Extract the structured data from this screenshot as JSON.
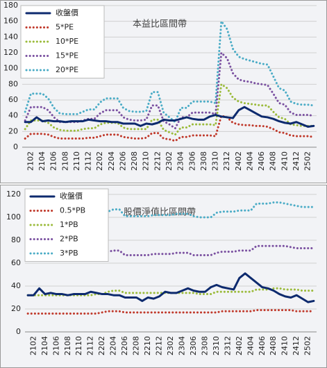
{
  "chart_data": [
    {
      "type": "line",
      "title": "本益比區間帶",
      "categories": [
        null,
        "2102",
        null,
        "2104",
        null,
        "2106",
        null,
        "2108",
        null,
        "2110",
        null,
        "2112",
        null,
        "2202",
        null,
        "2204",
        null,
        "2206",
        null,
        "2208",
        null,
        "2210",
        null,
        "2212",
        null,
        "2302",
        null,
        "2304",
        null,
        "2306",
        null,
        "2308",
        null,
        "2310",
        null,
        "2312",
        null,
        "2402",
        null,
        "2404",
        null,
        "2406",
        null,
        "2408",
        null,
        "2410",
        null,
        "2412",
        null,
        "2502",
        null
      ],
      "ylim": [
        0,
        180
      ],
      "yticks": [
        0,
        20,
        40,
        60,
        80,
        100,
        120,
        140,
        160,
        180
      ],
      "grid": true,
      "legend": "top-left",
      "series": [
        {
          "name": "收盤價",
          "color": "#0d2a6e",
          "style": "solid",
          "values": [
            32,
            32,
            38,
            33,
            34,
            33,
            33,
            32,
            33,
            33,
            33,
            35,
            34,
            33,
            33,
            32,
            32,
            30,
            30,
            30,
            27,
            30,
            29,
            31,
            35,
            34,
            34,
            36,
            38,
            36,
            35,
            35,
            39,
            41,
            39,
            38,
            37,
            47,
            51,
            47,
            43,
            39,
            38,
            36,
            33,
            31,
            30,
            32,
            29,
            26,
            27
          ]
        },
        {
          "name": "5*PE",
          "color": "#c0392b",
          "style": "dotted",
          "values": [
            11,
            17,
            17,
            17,
            16,
            13,
            11,
            11,
            11,
            11,
            11,
            12,
            12,
            14,
            16,
            16,
            16,
            13,
            12,
            11,
            11,
            12,
            18,
            18,
            11,
            10,
            8,
            13,
            13,
            15,
            15,
            15,
            15,
            14,
            40,
            38,
            31,
            29,
            28,
            28,
            27,
            27,
            26,
            23,
            19,
            18,
            15,
            14,
            14,
            14,
            13
          ]
        },
        {
          "name": "10*PE",
          "color": "#9bbb3b",
          "style": "dotted",
          "values": [
            23,
            34,
            34,
            34,
            31,
            25,
            22,
            21,
            21,
            21,
            23,
            24,
            24,
            29,
            31,
            31,
            31,
            25,
            23,
            23,
            23,
            23,
            35,
            35,
            22,
            19,
            16,
            25,
            25,
            29,
            29,
            29,
            29,
            28,
            80,
            75,
            63,
            58,
            56,
            55,
            54,
            53,
            53,
            45,
            38,
            36,
            29,
            28,
            27,
            27,
            27
          ]
        },
        {
          "name": "15*PE",
          "color": "#7a50a0",
          "style": "dotted",
          "values": [
            34,
            51,
            51,
            51,
            47,
            38,
            32,
            32,
            32,
            32,
            34,
            36,
            36,
            43,
            47,
            47,
            47,
            38,
            35,
            34,
            34,
            35,
            53,
            53,
            33,
            29,
            24,
            38,
            38,
            44,
            44,
            44,
            44,
            42,
            120,
            113,
            94,
            86,
            84,
            83,
            81,
            80,
            79,
            68,
            56,
            54,
            44,
            41,
            41,
            41,
            40
          ]
        },
        {
          "name": "20*PE",
          "color": "#4bacc6",
          "style": "dotted",
          "values": [
            45,
            68,
            68,
            68,
            62,
            50,
            43,
            42,
            42,
            42,
            45,
            48,
            48,
            57,
            62,
            62,
            62,
            50,
            46,
            45,
            45,
            46,
            70,
            70,
            44,
            38,
            32,
            50,
            50,
            58,
            58,
            58,
            58,
            56,
            160,
            150,
            125,
            115,
            112,
            110,
            108,
            106,
            105,
            90,
            75,
            72,
            58,
            55,
            54,
            54,
            53
          ]
        }
      ]
    },
    {
      "type": "line",
      "title": "股價淨值比區間帶",
      "categories": [
        null,
        "2102",
        null,
        "2104",
        null,
        "2106",
        null,
        "2108",
        null,
        "2110",
        null,
        "2112",
        null,
        "2202",
        null,
        "2204",
        null,
        "2206",
        null,
        "2208",
        null,
        "2210",
        null,
        "2212",
        null,
        "2302",
        null,
        "2304",
        null,
        "2306",
        null,
        "2308",
        null,
        "2310",
        null,
        "2312",
        null,
        "2402",
        null,
        "2404",
        null,
        "2406",
        null,
        "2408",
        null,
        "2410",
        null,
        "2412",
        null,
        "2502",
        null
      ],
      "ylim": [
        0,
        120
      ],
      "yticks": [
        0,
        20,
        40,
        60,
        80,
        100,
        120
      ],
      "grid": true,
      "legend": "top-left",
      "series": [
        {
          "name": "收盤價",
          "color": "#0d2a6e",
          "style": "solid",
          "values": [
            32,
            32,
            38,
            33,
            34,
            33,
            33,
            32,
            33,
            33,
            33,
            35,
            34,
            33,
            33,
            32,
            32,
            30,
            30,
            30,
            27,
            30,
            29,
            31,
            35,
            34,
            34,
            36,
            38,
            36,
            35,
            35,
            39,
            41,
            39,
            38,
            37,
            47,
            51,
            47,
            43,
            39,
            38,
            36,
            33,
            31,
            30,
            32,
            29,
            26,
            27
          ]
        },
        {
          "name": "0.5*PB",
          "color": "#c0392b",
          "style": "dotted",
          "values": [
            16,
            16,
            16,
            16,
            16,
            16,
            16,
            16,
            16,
            16,
            16,
            16,
            16,
            17,
            18,
            18,
            18,
            17,
            17,
            17,
            17,
            17,
            17,
            17,
            17,
            17,
            17,
            17,
            17,
            17,
            17,
            17,
            17,
            17,
            18,
            18,
            18,
            18,
            18,
            18,
            19,
            19,
            19,
            19,
            19,
            19,
            19,
            18,
            18,
            18,
            18
          ]
        },
        {
          "name": "1*PB",
          "color": "#9bbb3b",
          "style": "dotted",
          "values": [
            32,
            32,
            32,
            32,
            32,
            32,
            32,
            32,
            32,
            32,
            32,
            32,
            33,
            33,
            35,
            36,
            36,
            34,
            34,
            34,
            34,
            34,
            34,
            34,
            34,
            34,
            34,
            34,
            34,
            34,
            33,
            33,
            33,
            35,
            35,
            35,
            35,
            35,
            35,
            35,
            37,
            37,
            37,
            38,
            38,
            37,
            37,
            37,
            36,
            36,
            36
          ]
        },
        {
          "name": "2*PB",
          "color": "#7a50a0",
          "style": "dotted",
          "values": [
            64,
            64,
            64,
            64,
            63,
            63,
            63,
            63,
            63,
            64,
            64,
            65,
            65,
            67,
            70,
            71,
            71,
            67,
            67,
            67,
            67,
            67,
            68,
            68,
            68,
            68,
            69,
            69,
            69,
            67,
            67,
            67,
            67,
            69,
            70,
            70,
            70,
            71,
            71,
            71,
            75,
            75,
            75,
            75,
            75,
            75,
            74,
            73,
            73,
            73,
            73
          ]
        },
        {
          "name": "3*PB",
          "color": "#4bacc6",
          "style": "dotted",
          "values": [
            96,
            96,
            96,
            96,
            95,
            95,
            95,
            95,
            95,
            96,
            96,
            97,
            98,
            100,
            105,
            107,
            107,
            101,
            101,
            101,
            101,
            101,
            102,
            102,
            102,
            102,
            103,
            103,
            103,
            101,
            100,
            100,
            100,
            104,
            105,
            105,
            105,
            106,
            106,
            106,
            112,
            112,
            112,
            113,
            113,
            112,
            111,
            110,
            109,
            109,
            109
          ]
        }
      ]
    }
  ]
}
